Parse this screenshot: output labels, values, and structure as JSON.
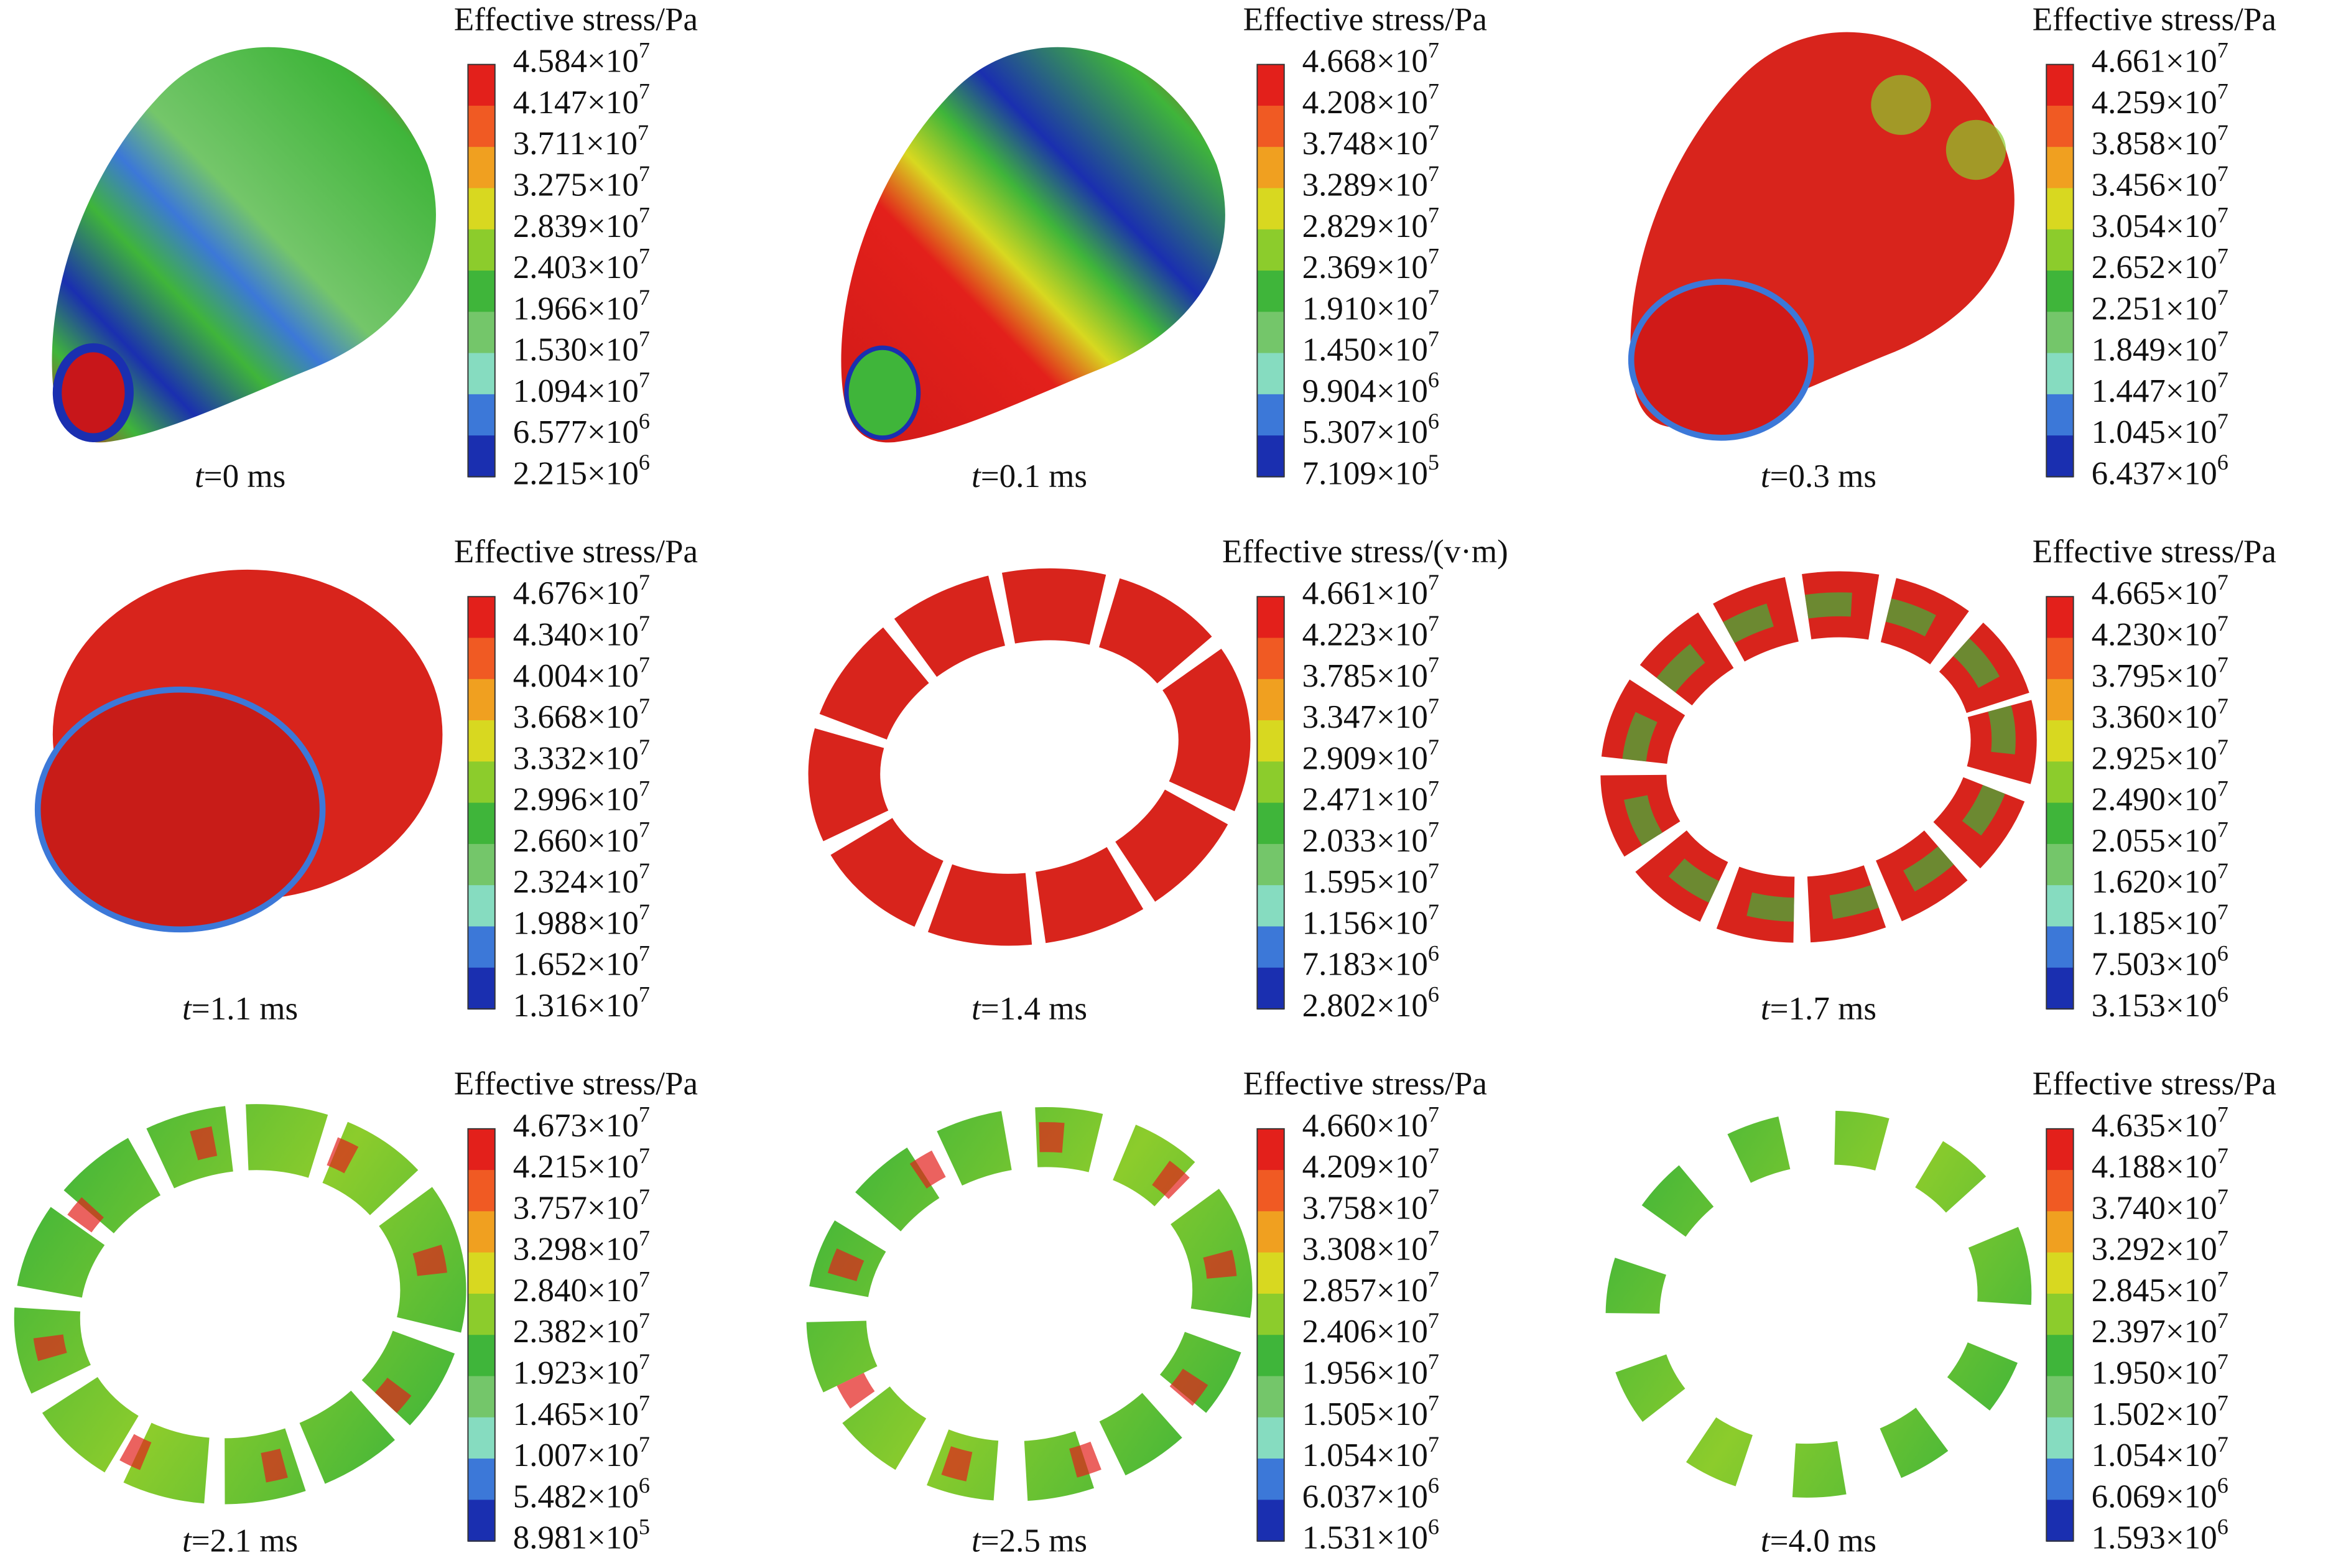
{
  "colormap": [
    "#e3201b",
    "#f05a23",
    "#f0a020",
    "#d8d820",
    "#8ccc2c",
    "#3fb53a",
    "#74c66a",
    "#86dcc0",
    "#3c78d8",
    "#1a2fb0"
  ],
  "panels": [
    {
      "legend_title": "Effective stress/Pa",
      "time": [
        "t",
        "=0 ms"
      ],
      "levels": [
        [
          "4.584×10",
          "7"
        ],
        [
          "4.147×10",
          "7"
        ],
        [
          "3.711×10",
          "7"
        ],
        [
          "3.275×10",
          "7"
        ],
        [
          "2.839×10",
          "7"
        ],
        [
          "2.403×10",
          "7"
        ],
        [
          "1.966×10",
          "7"
        ],
        [
          "1.530×10",
          "7"
        ],
        [
          "1.094×10",
          "7"
        ],
        [
          "6.577×10",
          "6"
        ],
        [
          "2.215×10",
          "6"
        ]
      ]
    },
    {
      "legend_title": "Effective stress/Pa",
      "time": [
        "t",
        "=0.1 ms"
      ],
      "levels": [
        [
          "4.668×10",
          "7"
        ],
        [
          "4.208×10",
          "7"
        ],
        [
          "3.748×10",
          "7"
        ],
        [
          "3.289×10",
          "7"
        ],
        [
          "2.829×10",
          "7"
        ],
        [
          "2.369×10",
          "7"
        ],
        [
          "1.910×10",
          "7"
        ],
        [
          "1.450×10",
          "7"
        ],
        [
          "9.904×10",
          "6"
        ],
        [
          "5.307×10",
          "6"
        ],
        [
          "7.109×10",
          "5"
        ]
      ]
    },
    {
      "legend_title": "Effective stress/Pa",
      "time": [
        "t",
        "=0.3 ms"
      ],
      "levels": [
        [
          "4.661×10",
          "7"
        ],
        [
          "4.259×10",
          "7"
        ],
        [
          "3.858×10",
          "7"
        ],
        [
          "3.456×10",
          "7"
        ],
        [
          "3.054×10",
          "7"
        ],
        [
          "2.652×10",
          "7"
        ],
        [
          "2.251×10",
          "7"
        ],
        [
          "1.849×10",
          "7"
        ],
        [
          "1.447×10",
          "7"
        ],
        [
          "1.045×10",
          "7"
        ],
        [
          "6.437×10",
          "6"
        ]
      ]
    },
    {
      "legend_title": "Effective stress/Pa",
      "time": [
        "t",
        "=1.1 ms"
      ],
      "levels": [
        [
          "4.676×10",
          "7"
        ],
        [
          "4.340×10",
          "7"
        ],
        [
          "4.004×10",
          "7"
        ],
        [
          "3.668×10",
          "7"
        ],
        [
          "3.332×10",
          "7"
        ],
        [
          "2.996×10",
          "7"
        ],
        [
          "2.660×10",
          "7"
        ],
        [
          "2.324×10",
          "7"
        ],
        [
          "1.988×10",
          "7"
        ],
        [
          "1.652×10",
          "7"
        ],
        [
          "1.316×10",
          "7"
        ]
      ]
    },
    {
      "legend_title": "Effective stress/(v·m)",
      "time": [
        "t",
        "=1.4 ms"
      ],
      "levels": [
        [
          "4.661×10",
          "7"
        ],
        [
          "4.223×10",
          "7"
        ],
        [
          "3.785×10",
          "7"
        ],
        [
          "3.347×10",
          "7"
        ],
        [
          "2.909×10",
          "7"
        ],
        [
          "2.471×10",
          "7"
        ],
        [
          "2.033×10",
          "7"
        ],
        [
          "1.595×10",
          "7"
        ],
        [
          "1.156×10",
          "7"
        ],
        [
          "7.183×10",
          "6"
        ],
        [
          "2.802×10",
          "6"
        ]
      ]
    },
    {
      "legend_title": "Effective stress/Pa",
      "time": [
        "t",
        "=1.7 ms"
      ],
      "levels": [
        [
          "4.665×10",
          "7"
        ],
        [
          "4.230×10",
          "7"
        ],
        [
          "3.795×10",
          "7"
        ],
        [
          "3.360×10",
          "7"
        ],
        [
          "2.925×10",
          "7"
        ],
        [
          "2.490×10",
          "7"
        ],
        [
          "2.055×10",
          "7"
        ],
        [
          "1.620×10",
          "7"
        ],
        [
          "1.185×10",
          "7"
        ],
        [
          "7.503×10",
          "6"
        ],
        [
          "3.153×10",
          "6"
        ]
      ]
    },
    {
      "legend_title": "Effective stress/Pa",
      "time": [
        "t",
        "=2.1 ms"
      ],
      "levels": [
        [
          "4.673×10",
          "7"
        ],
        [
          "4.215×10",
          "7"
        ],
        [
          "3.757×10",
          "7"
        ],
        [
          "3.298×10",
          "7"
        ],
        [
          "2.840×10",
          "7"
        ],
        [
          "2.382×10",
          "7"
        ],
        [
          "1.923×10",
          "7"
        ],
        [
          "1.465×10",
          "7"
        ],
        [
          "1.007×10",
          "7"
        ],
        [
          "5.482×10",
          "6"
        ],
        [
          "8.981×10",
          "5"
        ]
      ]
    },
    {
      "legend_title": "Effective stress/Pa",
      "time": [
        "t",
        "=2.5 ms"
      ],
      "levels": [
        [
          "4.660×10",
          "7"
        ],
        [
          "4.209×10",
          "7"
        ],
        [
          "3.758×10",
          "7"
        ],
        [
          "3.308×10",
          "7"
        ],
        [
          "2.857×10",
          "7"
        ],
        [
          "2.406×10",
          "7"
        ],
        [
          "1.956×10",
          "7"
        ],
        [
          "1.505×10",
          "7"
        ],
        [
          "1.054×10",
          "7"
        ],
        [
          "6.037×10",
          "6"
        ],
        [
          "1.531×10",
          "6"
        ]
      ]
    },
    {
      "legend_title": "Effective stress/Pa",
      "time": [
        "t",
        "=4.0 ms"
      ],
      "levels": [
        [
          "4.635×10",
          "7"
        ],
        [
          "4.188×10",
          "7"
        ],
        [
          "3.740×10",
          "7"
        ],
        [
          "3.292×10",
          "7"
        ],
        [
          "2.845×10",
          "7"
        ],
        [
          "2.397×10",
          "7"
        ],
        [
          "1.950×10",
          "7"
        ],
        [
          "1.502×10",
          "7"
        ],
        [
          "1.054×10",
          "7"
        ],
        [
          "6.069×10",
          "6"
        ],
        [
          "1.593×10",
          "6"
        ]
      ]
    }
  ]
}
